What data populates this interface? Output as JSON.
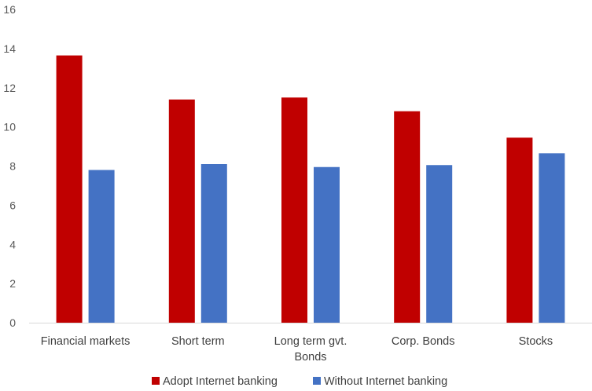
{
  "chart_data": {
    "type": "bar",
    "categories": [
      [
        "Financial markets"
      ],
      [
        "Short term"
      ],
      [
        "Long term gvt.",
        "Bonds"
      ],
      [
        "Corp. Bonds"
      ],
      [
        "Stocks"
      ]
    ],
    "series": [
      {
        "name": "Adopt Internet banking",
        "color": "#C00000",
        "values": [
          13.65,
          11.4,
          11.5,
          10.8,
          9.45
        ]
      },
      {
        "name": "Without Internet banking",
        "color": "#4472C4",
        "values": [
          7.8,
          8.1,
          7.95,
          8.05,
          8.65
        ]
      }
    ],
    "yticks": [
      "0",
      "2",
      "4",
      "6",
      "8",
      "10",
      "12",
      "14",
      "16"
    ],
    "ylim": [
      0,
      16
    ],
    "grid": false,
    "legend_position": "bottom"
  }
}
